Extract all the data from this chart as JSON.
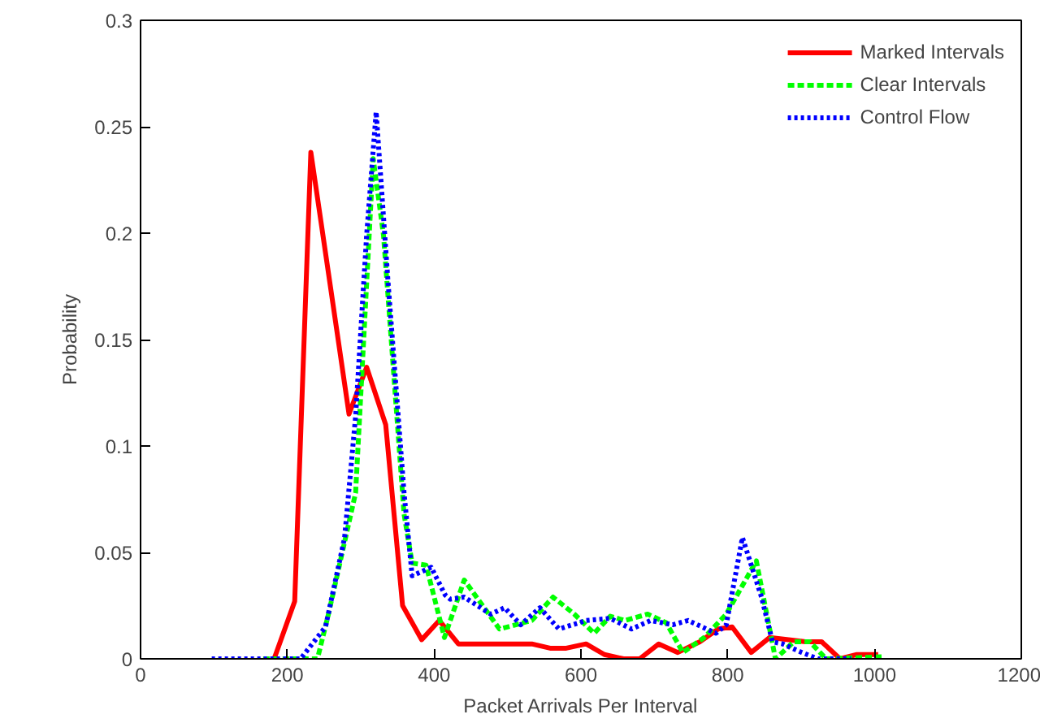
{
  "chart_data": {
    "type": "line",
    "xlabel": "Packet Arrivals Per Interval",
    "ylabel": "Probability",
    "xlim": [
      0,
      1200
    ],
    "ylim": [
      0,
      0.3
    ],
    "xticks": [
      0,
      200,
      400,
      600,
      800,
      1000,
      1200
    ],
    "yticks": [
      0,
      0.05,
      0.1,
      0.15,
      0.2,
      0.25,
      0.3
    ],
    "grid": false,
    "legend": "top right",
    "series": [
      {
        "name": "Marked Intervals",
        "color": "#ff0000",
        "line_style": "solid",
        "x": [
          182,
          210,
          232,
          284,
          308,
          334,
          357,
          383,
          407,
          433,
          533,
          558,
          580,
          607,
          632,
          658,
          680,
          706,
          732,
          762,
          787,
          806,
          832,
          857,
          883,
          906,
          928,
          953,
          976,
          1005
        ],
        "values": [
          0,
          0.027,
          0.238,
          0.115,
          0.137,
          0.11,
          0.025,
          0.009,
          0.018,
          0.007,
          0.007,
          0.005,
          0.005,
          0.007,
          0.002,
          0,
          0,
          0.007,
          0.003,
          0.008,
          0.014,
          0.015,
          0.003,
          0.01,
          0.009,
          0.008,
          0.008,
          0,
          0.002,
          0.002
        ]
      },
      {
        "name": "Clear Intervals",
        "color": "#00ff00",
        "line_style": "dashed",
        "x": [
          167,
          197,
          241,
          256,
          293,
          317,
          331,
          359,
          370,
          389,
          414,
          441,
          489,
          533,
          562,
          591,
          618,
          640,
          660,
          691,
          716,
          739,
          768,
          798,
          839,
          865,
          890,
          912,
          934,
          1012
        ],
        "values": [
          0,
          0,
          0,
          0.021,
          0.078,
          0.235,
          0.199,
          0.068,
          0.045,
          0.044,
          0.01,
          0.037,
          0.014,
          0.018,
          0.029,
          0.021,
          0.012,
          0.02,
          0.018,
          0.021,
          0.017,
          0.003,
          0.01,
          0.021,
          0.046,
          0,
          0.008,
          0.008,
          0,
          0.001
        ]
      },
      {
        "name": "Control Flow",
        "color": "#0000ff",
        "line_style": "dotted",
        "x": [
          97,
          141,
          207,
          218,
          252,
          278,
          293,
          308,
          321,
          337,
          359,
          370,
          396,
          415,
          422,
          441,
          477,
          496,
          518,
          544,
          570,
          607,
          640,
          669,
          695,
          725,
          746,
          784,
          798,
          820,
          846,
          861,
          875,
          901,
          923,
          957,
          968
        ],
        "values": [
          0,
          0,
          0,
          0,
          0.015,
          0.057,
          0.114,
          0.199,
          0.257,
          0.178,
          0.078,
          0.039,
          0.043,
          0.03,
          0.028,
          0.029,
          0.021,
          0.024,
          0.016,
          0.024,
          0.014,
          0.018,
          0.019,
          0.014,
          0.018,
          0.016,
          0.018,
          0.012,
          0.016,
          0.057,
          0.029,
          0.008,
          0.007,
          0.003,
          0,
          0,
          0
        ]
      }
    ]
  }
}
